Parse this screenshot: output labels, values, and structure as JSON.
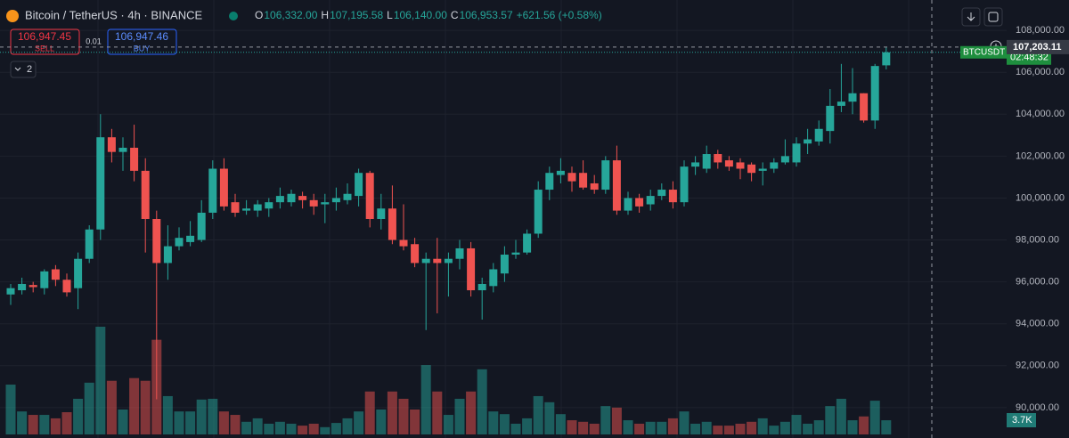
{
  "chart_data": {
    "type": "candlestick",
    "title": "Bitcoin / TetherUS · 4h · BINANCE",
    "ohlc_legend": [
      {
        "key": "O",
        "value": "106,332.00"
      },
      {
        "key": "H",
        "value": "107,195.58"
      },
      {
        "key": "L",
        "value": "106,140.00"
      },
      {
        "key": "C",
        "value": "106,953.57"
      }
    ],
    "change": "+621.56 (+0.58%)",
    "trade": {
      "sell_price": "106,947.45",
      "sell": "SELL",
      "spread": "0.01",
      "buy_price": "106,947.46",
      "buy": "BUY"
    },
    "indicators_count": 2,
    "up_color": "#26a69a",
    "down_color": "#ef5350",
    "open": [
      95400,
      95600,
      95850,
      95700,
      96600,
      96100,
      95700,
      97100,
      98500,
      102900,
      102200,
      102400,
      101300,
      99000,
      96900,
      97700,
      97900,
      98000,
      99300,
      101400,
      99800,
      99400,
      99400,
      99500,
      99800,
      99800,
      100100,
      99900,
      99700,
      99800,
      99900,
      100100,
      101200,
      99000,
      99500,
      98000,
      97800,
      96900,
      97100,
      96900,
      97100,
      97600,
      95600,
      95800,
      96400,
      97300,
      97400,
      98300,
      100400,
      101100,
      101200,
      101200,
      100700,
      100400,
      101800,
      99400,
      100000,
      99700,
      100100,
      100400,
      99800,
      101500,
      101400,
      102100,
      101800,
      101700,
      101600,
      101300,
      101400,
      101700,
      101700,
      102600,
      102700,
      103200,
      104400,
      104600,
      105000,
      103700,
      106332
    ],
    "close": [
      95700,
      95900,
      95750,
      96500,
      96100,
      95500,
      97100,
      98500,
      102900,
      102200,
      102400,
      101300,
      99000,
      96900,
      97700,
      98100,
      98200,
      99300,
      101400,
      99600,
      99300,
      99500,
      99700,
      99800,
      100100,
      100200,
      99900,
      99600,
      99800,
      100000,
      100200,
      101200,
      99000,
      99500,
      98000,
      97700,
      96900,
      97100,
      96900,
      97100,
      97600,
      95600,
      95900,
      96600,
      97300,
      97400,
      98300,
      100400,
      101200,
      101300,
      100800,
      100500,
      100400,
      101800,
      99400,
      100000,
      99600,
      100100,
      100400,
      99800,
      101500,
      101700,
      102100,
      101700,
      101500,
      101400,
      101200,
      101400,
      101700,
      102000,
      102600,
      102800,
      103300,
      104400,
      104600,
      105000,
      103700,
      106300,
      106953.57
    ],
    "high": [
      95900,
      96200,
      96000,
      96600,
      96800,
      96400,
      97400,
      98700,
      104000,
      103300,
      102900,
      103500,
      101900,
      99400,
      98700,
      98600,
      98900,
      99900,
      101800,
      101900,
      100200,
      99900,
      99900,
      100000,
      100500,
      100400,
      100300,
      100200,
      100200,
      100500,
      100700,
      101400,
      101300,
      100200,
      100600,
      99700,
      98100,
      97400,
      98100,
      97400,
      98000,
      97900,
      96200,
      96900,
      97700,
      98000,
      98500,
      100800,
      101500,
      101900,
      101500,
      101800,
      101100,
      102000,
      102500,
      100300,
      100200,
      100400,
      100700,
      100800,
      101800,
      102000,
      102500,
      102300,
      102000,
      101900,
      101700,
      101700,
      101900,
      102800,
      102900,
      103300,
      103700,
      105200,
      106400,
      106200,
      105000,
      106400,
      107195.58
    ],
    "low": [
      94900,
      95400,
      95500,
      95400,
      95800,
      95300,
      94700,
      96900,
      98000,
      101700,
      101300,
      100800,
      97400,
      90400,
      96100,
      97500,
      97700,
      97900,
      99000,
      99400,
      99100,
      99200,
      99100,
      99100,
      99500,
      99600,
      99500,
      99200,
      98800,
      99400,
      99700,
      99600,
      98600,
      98500,
      97800,
      97500,
      96700,
      93700,
      94500,
      95300,
      96600,
      95300,
      94200,
      95500,
      96000,
      97100,
      97300,
      98100,
      99900,
      100700,
      100300,
      100400,
      100200,
      100200,
      99200,
      99200,
      99300,
      99400,
      99900,
      99500,
      99600,
      101100,
      101200,
      101400,
      101300,
      100900,
      100800,
      100600,
      101200,
      101600,
      101500,
      102100,
      102500,
      102600,
      104100,
      104000,
      103600,
      103300,
      106140
    ],
    "volume": [
      13.0,
      6.0,
      5.1,
      5.1,
      4.2,
      5.8,
      9.3,
      13.5,
      28.1,
      14.0,
      6.5,
      14.7,
      14.0,
      24.7,
      10.0,
      6.0,
      6.0,
      9.1,
      9.3,
      6.0,
      5.1,
      3.3,
      4.2,
      2.8,
      3.3,
      2.8,
      2.3,
      2.8,
      1.9,
      3.0,
      4.2,
      6.0,
      11.2,
      6.5,
      11.2,
      9.3,
      6.5,
      18.1,
      11.2,
      5.1,
      9.3,
      11.2,
      17.0,
      6.0,
      5.3,
      2.8,
      4.2,
      10.0,
      8.4,
      5.3,
      3.7,
      3.3,
      2.8,
      7.4,
      7.0,
      3.7,
      2.8,
      3.3,
      3.3,
      4.2,
      6.0,
      2.8,
      3.3,
      2.3,
      2.3,
      2.8,
      3.3,
      4.2,
      2.3,
      3.3,
      5.1,
      2.8,
      3.7,
      7.4,
      9.3,
      3.7,
      4.7,
      8.8,
      3.7
    ],
    "volume_label": "3.7K",
    "ylim": [
      88550,
      109450
    ],
    "yticks": [
      {
        "value": 90000,
        "label": "90,000.00"
      },
      {
        "value": 92000,
        "label": "92,000.00"
      },
      {
        "value": 94000,
        "label": "94,000.00"
      },
      {
        "value": 96000,
        "label": "96,000.00"
      },
      {
        "value": 98000,
        "label": "98,000.00"
      },
      {
        "value": 100000,
        "label": "100,000.00"
      },
      {
        "value": 102000,
        "label": "102,000.00"
      },
      {
        "value": 104000,
        "label": "104,000.00"
      },
      {
        "value": 106000,
        "label": "106,000.00"
      },
      {
        "value": 108000,
        "label": "108,000.00"
      }
    ],
    "grid": true,
    "crosshair_price": {
      "value": 107203.11,
      "label": "107,203.11"
    },
    "symbol_tag": "BTCUSDT",
    "countdown": "02:48:32"
  }
}
